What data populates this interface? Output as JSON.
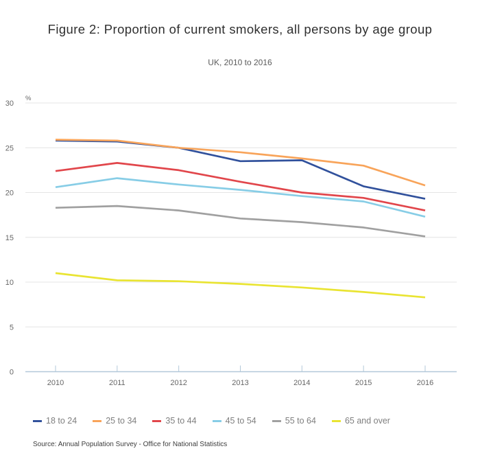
{
  "header": {
    "title": "Figure 2: Proportion of current smokers, all persons by age group",
    "subtitle": "UK, 2010 to 2016"
  },
  "source_note": "Source: Annual Population Survey - Office for National Statistics",
  "chart_data": {
    "type": "line",
    "title": "Figure 2: Proportion of current smokers, all persons by age group",
    "subtitle": "UK, 2010 to 2016",
    "x": [
      2010,
      2011,
      2012,
      2013,
      2014,
      2015,
      2016
    ],
    "unit_label": "%",
    "ylim": [
      0,
      30
    ],
    "yticks": [
      0,
      5,
      10,
      15,
      20,
      25,
      30
    ],
    "grid": "horizontal",
    "legend_position": "bottom",
    "axis_color": "#b2c8d9",
    "grid_color": "#e4e4e4",
    "tick_label_color": "#666666",
    "series": [
      {
        "name": "18 to 24",
        "color": "#31519c",
        "values": [
          25.8,
          25.7,
          25.0,
          23.5,
          23.6,
          20.7,
          19.3
        ]
      },
      {
        "name": "25 to 34",
        "color": "#f8a45a",
        "values": [
          25.9,
          25.8,
          25.0,
          24.5,
          23.8,
          23.0,
          20.8
        ]
      },
      {
        "name": "35 to 44",
        "color": "#e1464b",
        "values": [
          22.4,
          23.3,
          22.5,
          21.2,
          20.0,
          19.4,
          18.0
        ]
      },
      {
        "name": "45 to 54",
        "color": "#87cde6",
        "values": [
          20.6,
          21.6,
          20.9,
          20.3,
          19.6,
          19.0,
          17.3
        ]
      },
      {
        "name": "55 to 64",
        "color": "#a0a0a0",
        "values": [
          18.3,
          18.5,
          18.0,
          17.1,
          16.7,
          16.1,
          15.1
        ]
      },
      {
        "name": "65 and over",
        "color": "#e9e432",
        "values": [
          11.0,
          10.2,
          10.1,
          9.8,
          9.4,
          8.9,
          8.3
        ]
      }
    ]
  }
}
